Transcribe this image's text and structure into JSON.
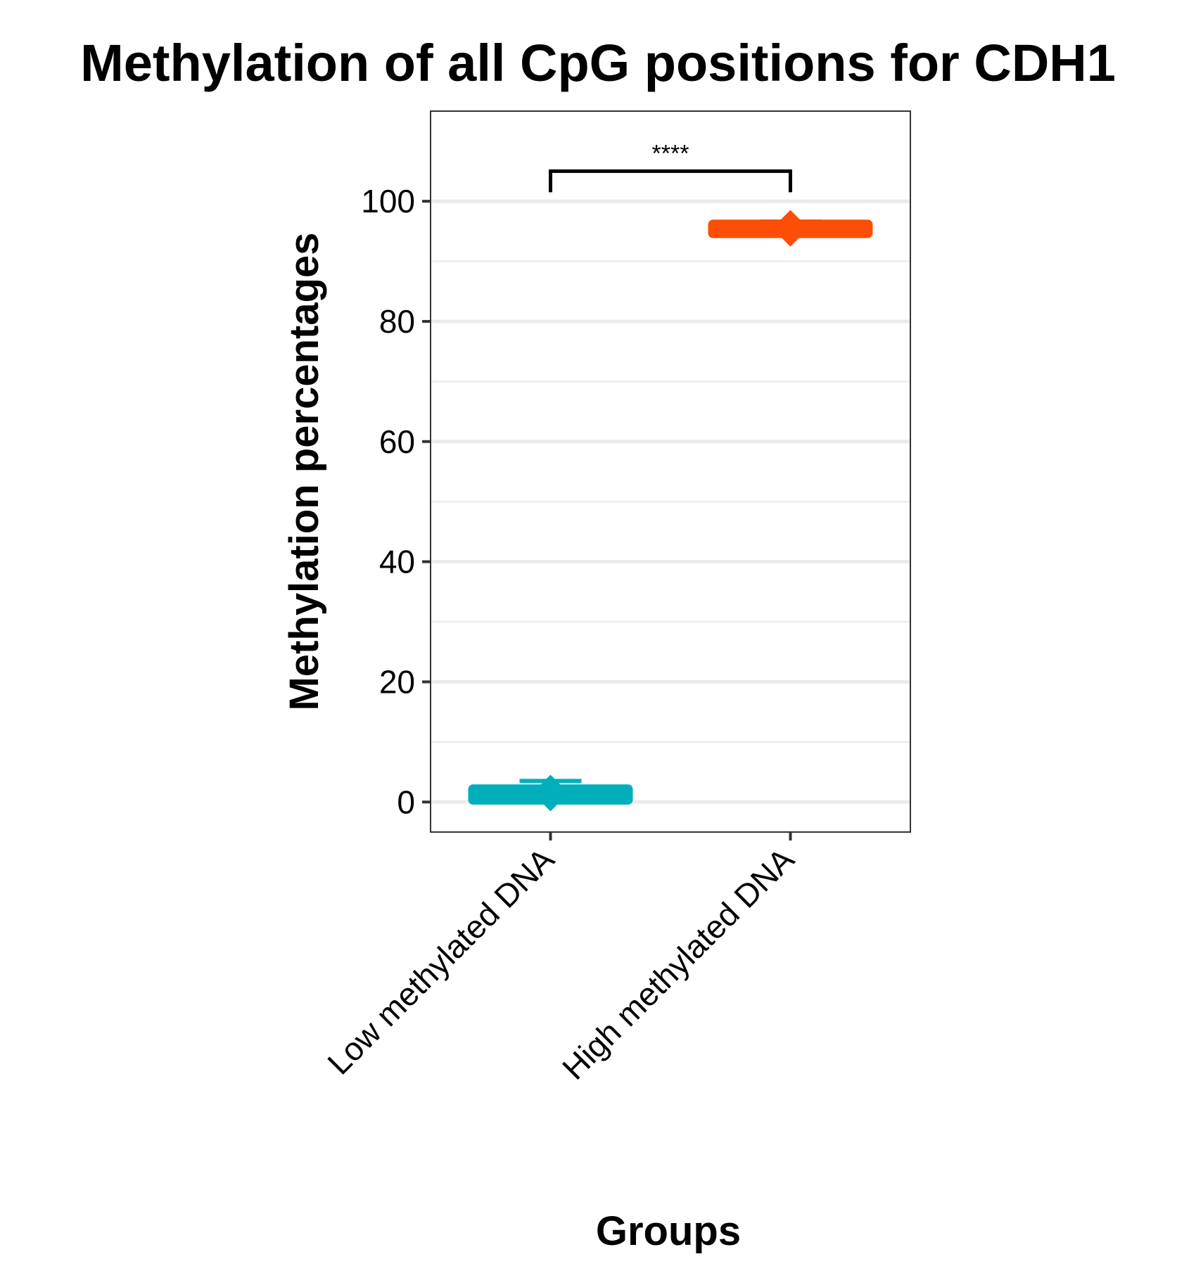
{
  "chart_data": {
    "type": "box",
    "title": "Methylation of all CpG positions for CDH1",
    "xlabel": "Groups",
    "ylabel": "Methylation percentages",
    "ylim": [
      -5,
      115
    ],
    "yticks": [
      0,
      20,
      40,
      60,
      80,
      100
    ],
    "minor_gridlines": [
      10,
      30,
      50,
      70,
      90
    ],
    "grid": true,
    "legend": "none",
    "categories": [
      "Low methylated DNA",
      "High methylated DNA"
    ],
    "groups": [
      {
        "category": "Low methylated DNA",
        "q1": 0.5,
        "median": 1.2,
        "q3": 2.0,
        "whisker_low": 0.3,
        "whisker_high": 3.5,
        "mean": 1.5,
        "color": "#00AFBB"
      },
      {
        "category": "High methylated DNA",
        "q1": 94.8,
        "median": 95.4,
        "q3": 96.0,
        "whisker_low": 94.6,
        "whisker_high": 96.6,
        "mean": 95.5,
        "color": "#FC4E07"
      }
    ],
    "significance": {
      "groups": [
        "Low methylated DNA",
        "High methylated DNA"
      ],
      "label": "****",
      "y": 105
    }
  }
}
